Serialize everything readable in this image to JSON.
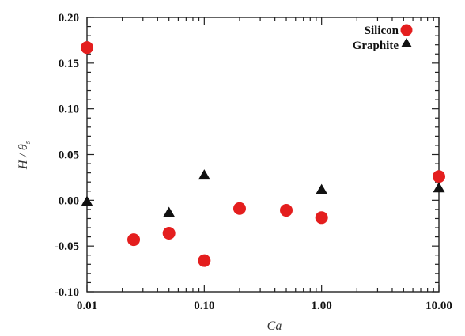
{
  "chart_data": {
    "type": "scatter",
    "xscale": "log",
    "xlim": [
      0.01,
      10
    ],
    "ylim": [
      -0.1,
      0.2
    ],
    "xticks": [
      "0.01",
      "0.10",
      "1.00",
      "10.00"
    ],
    "xtick_values": [
      0.01,
      0.1,
      1,
      10
    ],
    "yticks": [
      "-0.10",
      "-0.05",
      "0.00",
      "0.05",
      "0.10",
      "0.15",
      "0.20"
    ],
    "ytick_values": [
      -0.1,
      -0.05,
      0.0,
      0.05,
      0.1,
      0.15,
      0.2
    ],
    "xlabel": "Ca",
    "ylabel_main": "H / θ",
    "ylabel_sub": "s",
    "legend_position": "top-right",
    "grid": false,
    "series": [
      {
        "name": "Silicon",
        "marker": "circle",
        "color": "#e41e1e",
        "points": [
          {
            "x": 0.01,
            "y": 0.167
          },
          {
            "x": 0.025,
            "y": -0.043
          },
          {
            "x": 0.05,
            "y": -0.036
          },
          {
            "x": 0.1,
            "y": -0.066
          },
          {
            "x": 0.2,
            "y": -0.009
          },
          {
            "x": 0.5,
            "y": -0.011
          },
          {
            "x": 1.0,
            "y": -0.019
          },
          {
            "x": 10.0,
            "y": 0.026
          }
        ]
      },
      {
        "name": "Graphite",
        "marker": "triangle",
        "color": "#111111",
        "points": [
          {
            "x": 0.01,
            "y": -0.002
          },
          {
            "x": 0.05,
            "y": -0.014
          },
          {
            "x": 0.1,
            "y": 0.027
          },
          {
            "x": 1.0,
            "y": 0.011
          },
          {
            "x": 10.0,
            "y": 0.013
          }
        ]
      }
    ]
  }
}
